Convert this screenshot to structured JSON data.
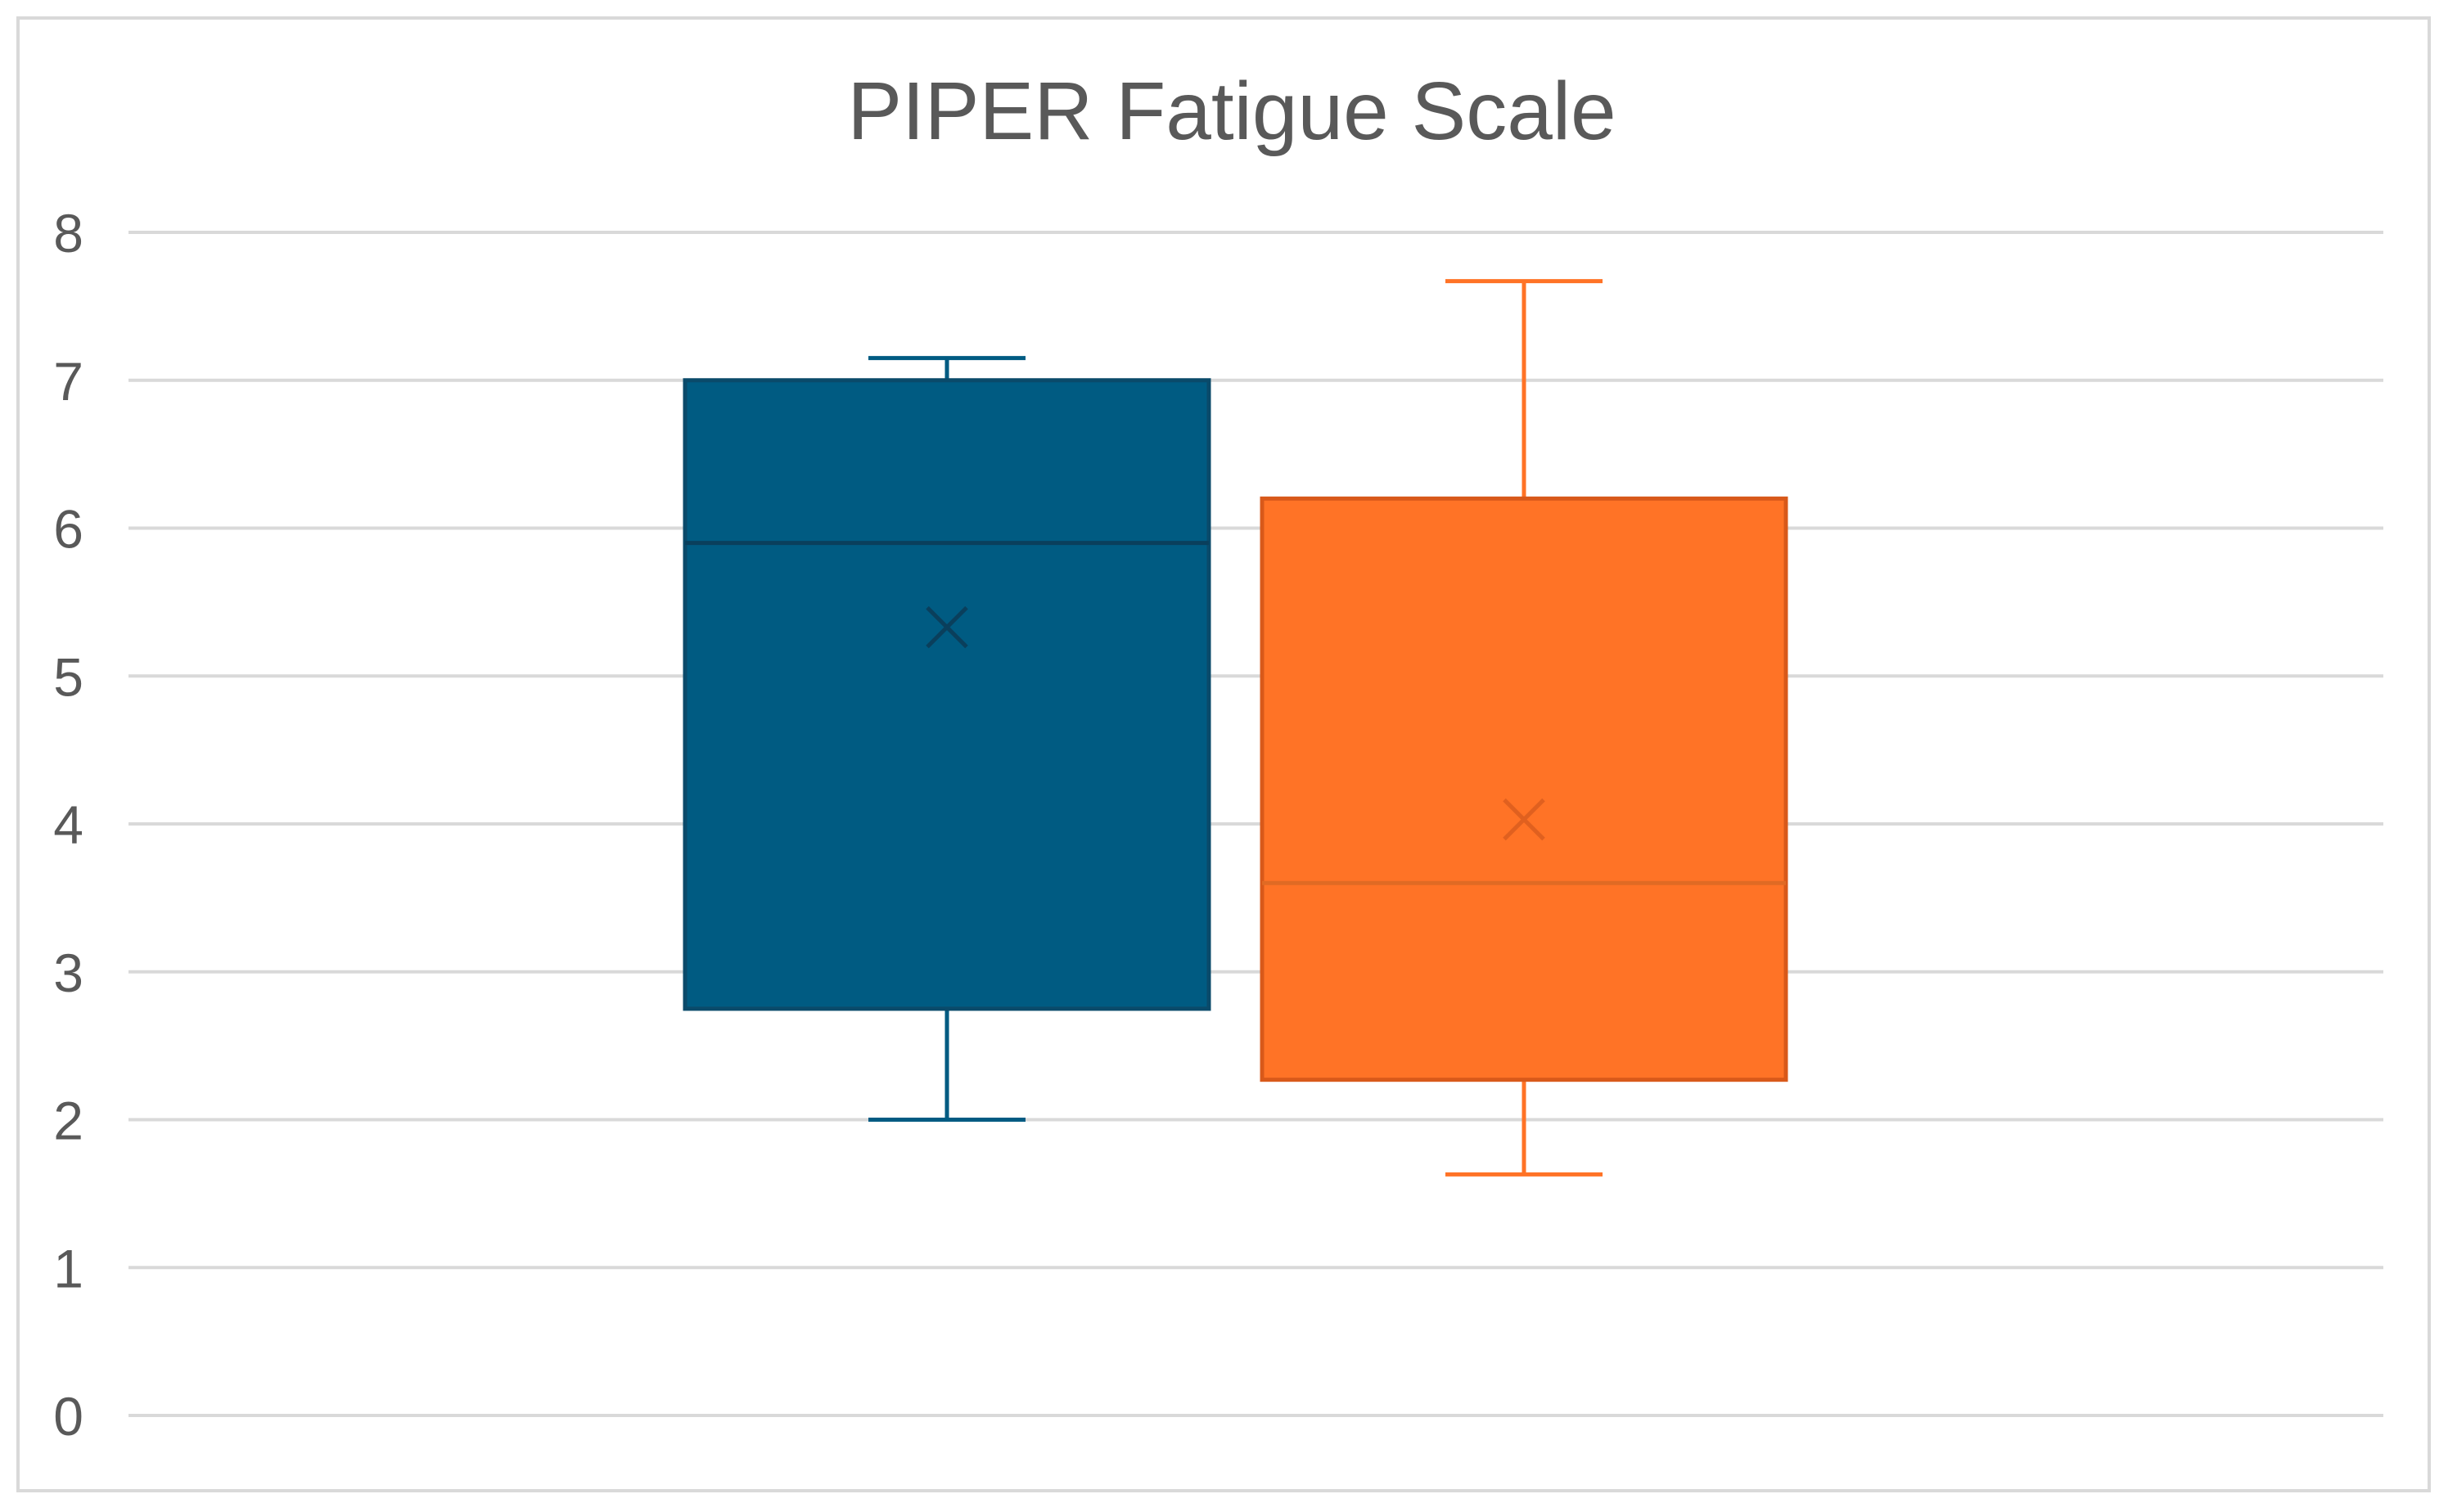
{
  "chart_data": {
    "type": "box",
    "title": "PIPER Fatigue Scale",
    "xlabel": "",
    "ylabel": "",
    "ylim": [
      0,
      8
    ],
    "yticks": [
      "0",
      "1",
      "2",
      "3",
      "4",
      "5",
      "6",
      "7",
      "8"
    ],
    "grid": true,
    "legend": "none",
    "series": [
      {
        "color": "#005B82",
        "whisker_low": 2.0,
        "q1": 2.75,
        "median": 5.9,
        "q3": 7.0,
        "whisker_high": 7.15,
        "mean": 5.33
      },
      {
        "color": "#FF7326",
        "median_color": "#E06A24",
        "whisker_low": 1.63,
        "q1": 2.27,
        "median": 3.6,
        "q3": 6.2,
        "whisker_high": 7.67,
        "mean": 4.03
      }
    ]
  },
  "style": {
    "grid_color": "#D9D9D9",
    "frame_color": "#D9D9D9",
    "text_color": "#595959"
  }
}
